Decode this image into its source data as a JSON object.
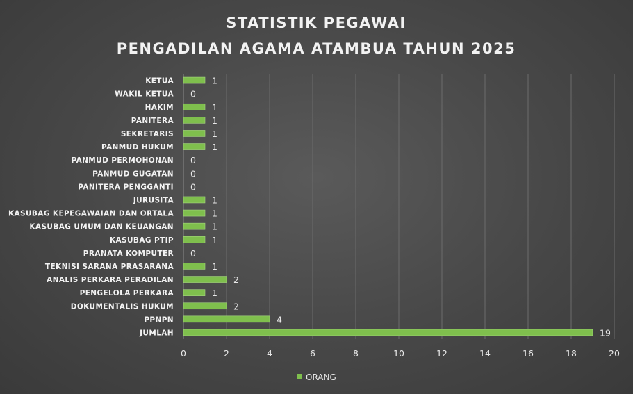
{
  "chart_data": {
    "type": "bar",
    "orientation": "horizontal",
    "title": [
      "STATISTIK PEGAWAI",
      "PENGADILAN AGAMA ATAMBUA TAHUN 2025"
    ],
    "categories": [
      "KETUA",
      "WAKIL KETUA",
      "HAKIM",
      "PANITERA",
      "SEKRETARIS",
      "PANMUD HUKUM",
      "PANMUD PERMOHONAN",
      "PANMUD GUGATAN",
      "PANITERA PENGGANTI",
      "JURUSITA",
      "KASUBAG  KEPEGAWAIAN DAN ORTALA",
      "KASUBAG  UMUM DAN KEUANGAN",
      "KASUBAG PTIP",
      "PRANATA KOMPUTER",
      "TEKNISI SARANA PRASARANA",
      "ANALIS PERKARA PERADILAN",
      "PENGELOLA PERKARA",
      "DOKUMENTALIS HUKUM",
      "PPNPN",
      "JUMLAH"
    ],
    "series": [
      {
        "name": "ORANG",
        "color": "#7fbf4d",
        "values": [
          1,
          0,
          1,
          1,
          1,
          1,
          0,
          0,
          0,
          1,
          1,
          1,
          1,
          0,
          1,
          2,
          1,
          2,
          4,
          19
        ]
      }
    ],
    "xlim": [
      0,
      20
    ],
    "xticks": [
      "0",
      "2",
      "4",
      "6",
      "8",
      "10",
      "12",
      "14",
      "16",
      "18",
      "20"
    ],
    "grid": true,
    "legend_position": "bottom",
    "data_labels": true
  }
}
